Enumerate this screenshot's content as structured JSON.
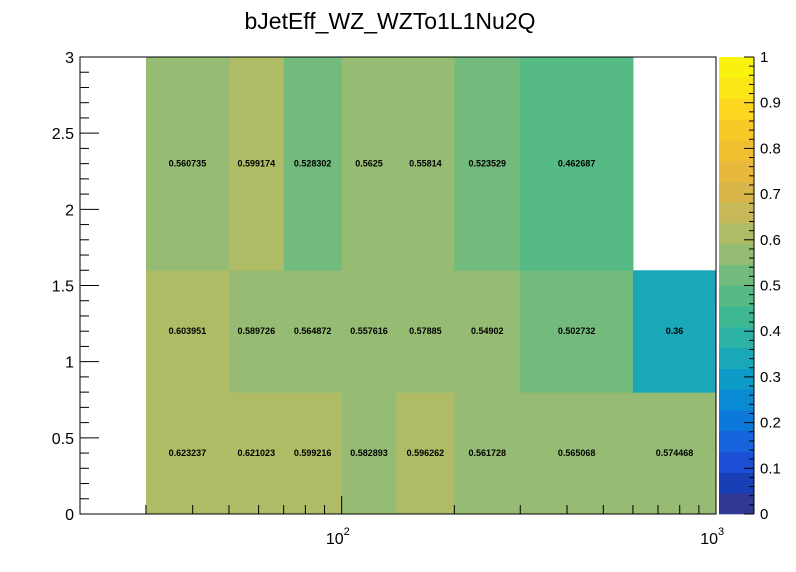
{
  "chart_data": {
    "type": "heatmap",
    "title": "bJetEff_WZ_WZTo1L1Nu2Q",
    "xlabel": "",
    "ylabel": "",
    "x_scale": "log",
    "xlim": [
      20,
      1000
    ],
    "ylim": [
      0,
      3
    ],
    "x_bin_edges": [
      30,
      50,
      70,
      100,
      140,
      200,
      300,
      600,
      1000
    ],
    "y_bin_edges": [
      0,
      0.8,
      1.6,
      3.0
    ],
    "x_tick_labels": [
      {
        "value": 100,
        "base": "10",
        "exp": "2"
      },
      {
        "value": 1000,
        "base": "10",
        "exp": "3"
      }
    ],
    "y_ticks": [
      0,
      0.5,
      1,
      1.5,
      2,
      2.5,
      3
    ],
    "y_tick_labels": [
      "0",
      "0.5",
      "1",
      "1.5",
      "2",
      "2.5",
      "3"
    ],
    "cells": [
      [
        {
          "value": 0.623237,
          "label": "0.623237"
        },
        {
          "value": 0.621023,
          "label": "0.621023"
        },
        {
          "value": 0.599216,
          "label": "0.599216"
        },
        {
          "value": 0.582893,
          "label": "0.582893"
        },
        {
          "value": 0.596262,
          "label": "0.596262"
        },
        {
          "value": 0.561728,
          "label": "0.561728"
        },
        {
          "value": 0.565068,
          "label": "0.565068"
        },
        {
          "value": 0.574468,
          "label": "0.574468"
        }
      ],
      [
        {
          "value": 0.603951,
          "label": "0.603951"
        },
        {
          "value": 0.589726,
          "label": "0.589726"
        },
        {
          "value": 0.564872,
          "label": "0.564872"
        },
        {
          "value": 0.557616,
          "label": "0.557616"
        },
        {
          "value": 0.57885,
          "label": "0.57885"
        },
        {
          "value": 0.54902,
          "label": "0.54902"
        },
        {
          "value": 0.502732,
          "label": "0.502732"
        },
        {
          "value": 0.36,
          "label": "0.36"
        }
      ],
      [
        {
          "value": 0.560735,
          "label": "0.560735"
        },
        {
          "value": 0.599174,
          "label": "0.599174"
        },
        {
          "value": 0.528302,
          "label": "0.528302"
        },
        {
          "value": 0.5625,
          "label": "0.5625"
        },
        {
          "value": 0.55814,
          "label": "0.55814"
        },
        {
          "value": 0.523529,
          "label": "0.523529"
        },
        {
          "value": 0.462687,
          "label": "0.462687"
        },
        null
      ]
    ],
    "z_range": [
      0,
      1
    ],
    "palette_labels": [
      "0",
      "0.1",
      "0.2",
      "0.3",
      "0.4",
      "0.5",
      "0.6",
      "0.7",
      "0.8",
      "0.9",
      "1"
    ],
    "palette_colors": [
      "#2f3894",
      "#193fb7",
      "#1b50d6",
      "#1564dd",
      "#0b78da",
      "#0a8ad2",
      "#0d9bc7",
      "#1aa8b9",
      "#2db3a6",
      "#3eb893",
      "#56ba85",
      "#73bb7d",
      "#95bc72",
      "#b0bb66",
      "#c7b958",
      "#d9b649",
      "#e6b83c",
      "#f0bf30",
      "#f7ca27",
      "#fbd81f",
      "#fbe717",
      "#f9f20f"
    ]
  }
}
